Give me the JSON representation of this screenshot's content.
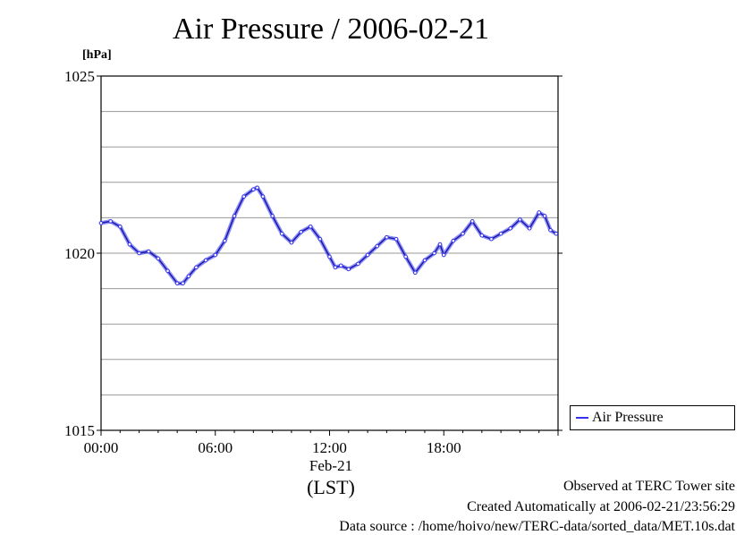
{
  "chart_data": {
    "type": "line",
    "title": "Air Pressure / 2006-02-21",
    "ylabel": "[hPa]",
    "xlabel": "(LST)",
    "date_label": "Feb-21",
    "ylim": [
      1015,
      1025
    ],
    "xlim_hours": [
      0,
      24
    ],
    "y_ticks": [
      1015,
      1020,
      1025
    ],
    "y_gridlines": [
      1016,
      1017,
      1018,
      1019,
      1020,
      1021,
      1022,
      1023,
      1024
    ],
    "x_ticks": [
      {
        "hour": 0,
        "label": "00:00"
      },
      {
        "hour": 6,
        "label": "06:00"
      },
      {
        "hour": 12,
        "label": "12:00"
      },
      {
        "hour": 18,
        "label": "18:00"
      }
    ],
    "legend_position": "right-bottom",
    "series": [
      {
        "name": "Air Pressure",
        "color": "#3333ee",
        "x": [
          0,
          0.5,
          1.0,
          1.5,
          2.0,
          2.5,
          3.0,
          3.5,
          4.0,
          4.3,
          4.6,
          5.0,
          5.5,
          6.0,
          6.5,
          7.0,
          7.5,
          8.0,
          8.2,
          8.5,
          9.0,
          9.5,
          10.0,
          10.5,
          11.0,
          11.5,
          12.0,
          12.3,
          12.6,
          13.0,
          13.5,
          14.0,
          14.5,
          15.0,
          15.5,
          16.0,
          16.5,
          17.0,
          17.5,
          17.8,
          18.0,
          18.5,
          19.0,
          19.5,
          20.0,
          20.5,
          21.0,
          21.5,
          22.0,
          22.5,
          23.0,
          23.3,
          23.6,
          23.9
        ],
        "values": [
          1020.85,
          1020.9,
          1020.75,
          1020.25,
          1020.0,
          1020.05,
          1019.85,
          1019.5,
          1019.15,
          1019.15,
          1019.35,
          1019.6,
          1019.8,
          1019.95,
          1020.35,
          1021.05,
          1021.6,
          1021.8,
          1021.85,
          1021.6,
          1021.05,
          1020.55,
          1020.3,
          1020.6,
          1020.75,
          1020.4,
          1019.9,
          1019.6,
          1019.65,
          1019.55,
          1019.7,
          1019.95,
          1020.2,
          1020.45,
          1020.4,
          1019.9,
          1019.45,
          1019.8,
          1020.0,
          1020.25,
          1019.95,
          1020.35,
          1020.55,
          1020.9,
          1020.5,
          1020.4,
          1020.55,
          1020.7,
          1020.95,
          1020.7,
          1021.15,
          1021.05,
          1020.65,
          1020.55
        ]
      }
    ]
  },
  "legend": {
    "label": "Air Pressure"
  },
  "footer": {
    "line1": "Observed at TERC Tower site",
    "line2": "Created Automatically at 2006-02-21/23:56:29",
    "line3": "Data source : /home/hoivo/new/TERC-data/sorted_data/MET.10s.dat"
  },
  "colors": {
    "series": "#3333ee",
    "grid": "#9a9a9a",
    "axis": "#000000"
  }
}
